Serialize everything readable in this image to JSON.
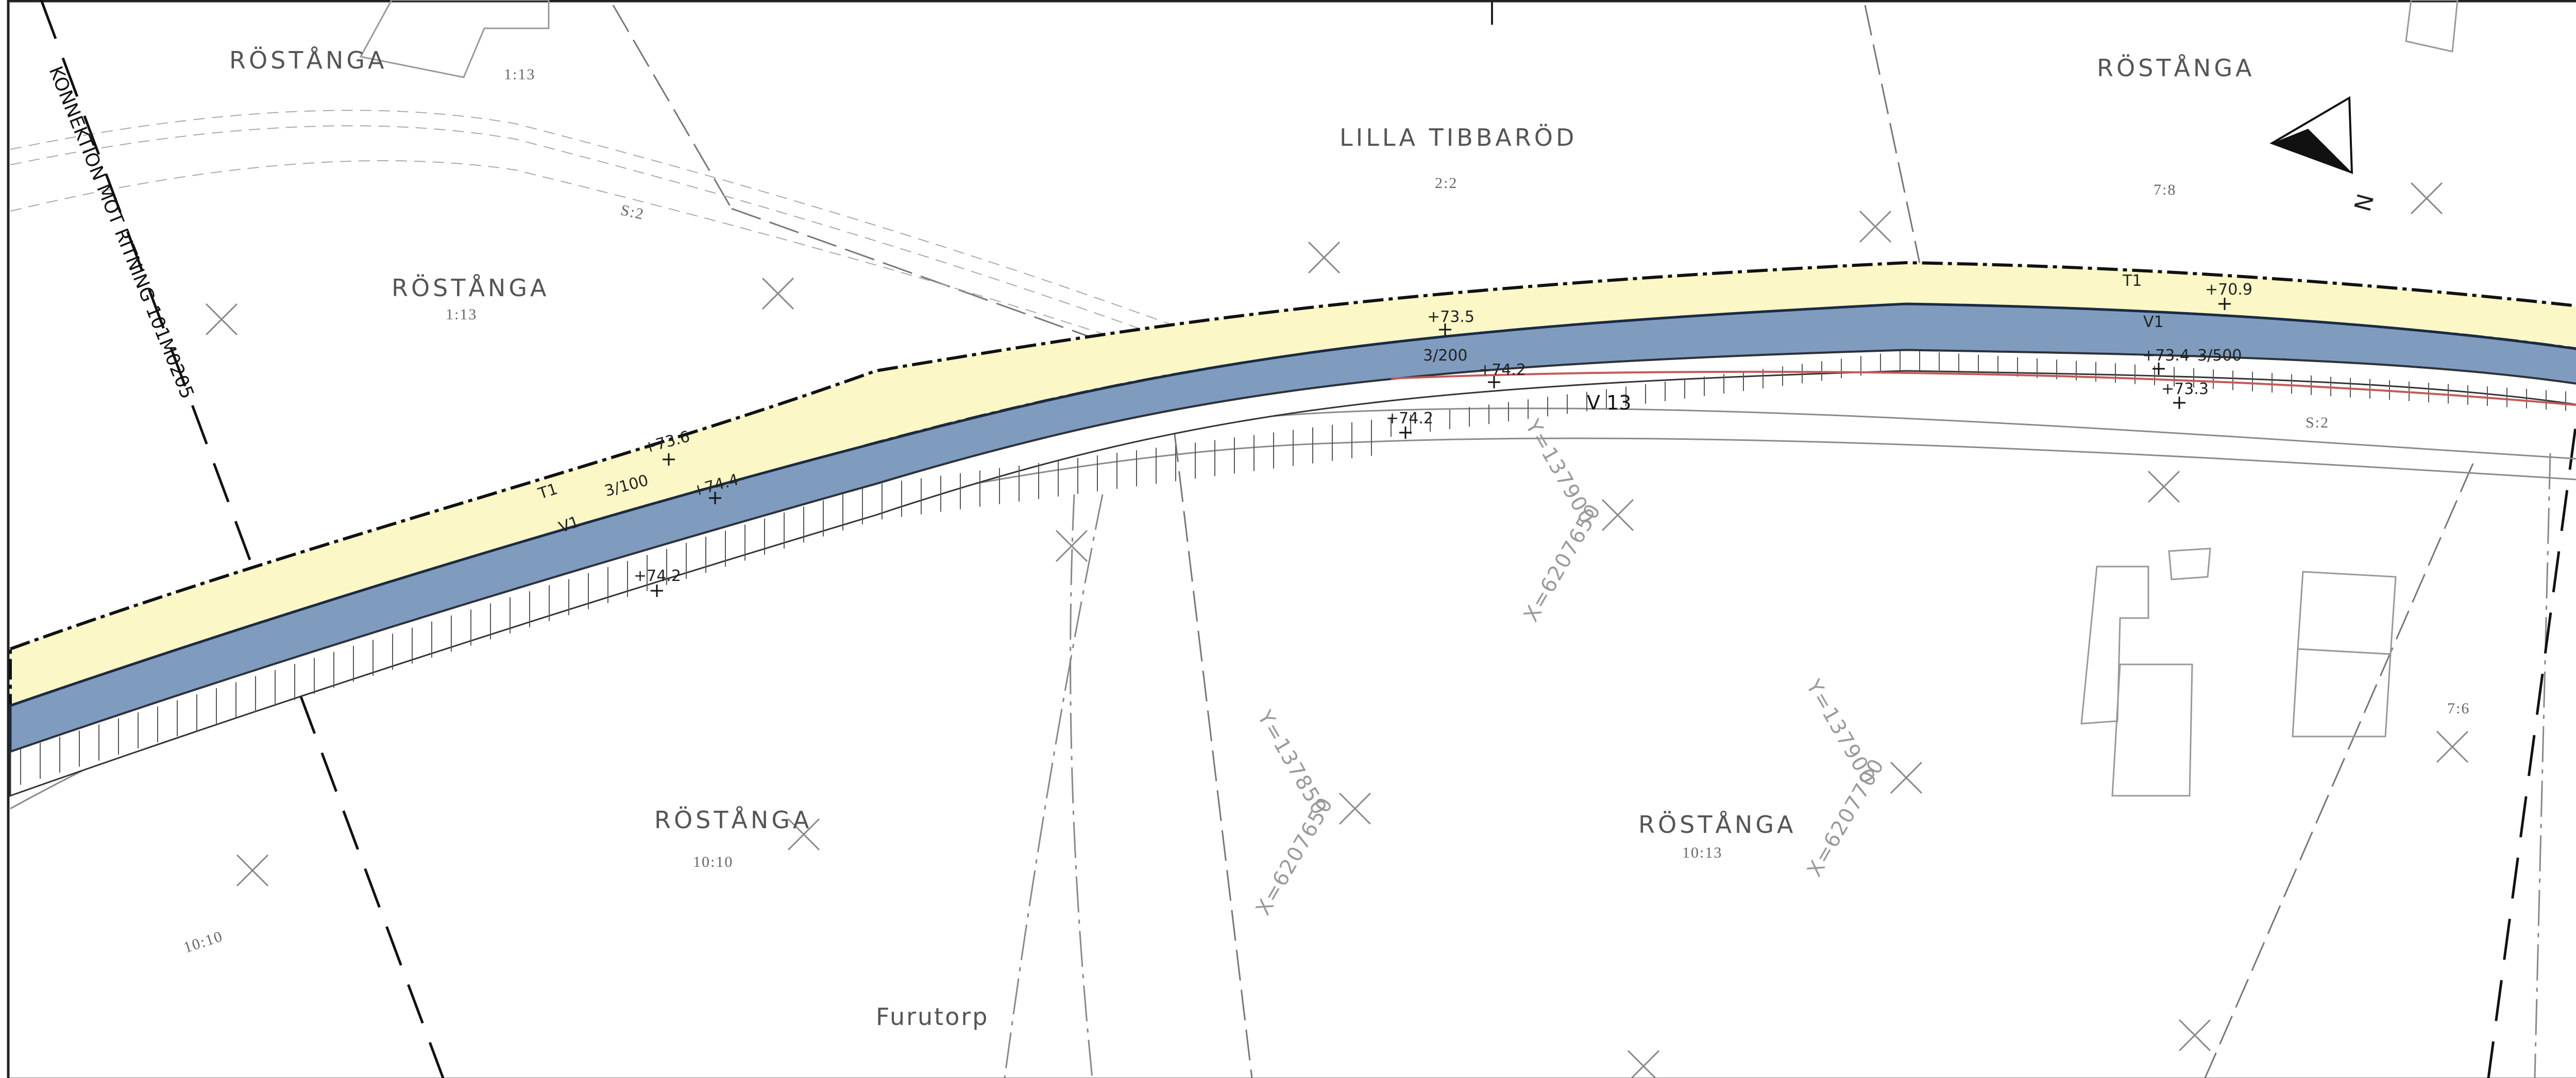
{
  "map": {
    "connection_note": "KONNEKTION MOT RITNING 101M0205",
    "road_name": "V 13",
    "north_symbol": "N",
    "property_labels": [
      {
        "name": "RÖSTÅNGA",
        "code": "1:13"
      },
      {
        "name": "RÖSTÅNGA",
        "code": "1:13"
      },
      {
        "name": "LILLA TIBBARÖD",
        "code": "2:2"
      },
      {
        "name": "RÖSTÅNGA",
        "code": "7:8"
      },
      {
        "name": "RÖSTÅNGA",
        "code": "10:10"
      },
      {
        "name": "RÖSTÅNGA",
        "code": "10:13"
      }
    ],
    "extra_codes": [
      "10:10",
      "7:6",
      "S:2",
      "S:2"
    ],
    "place_name": "Furutorp",
    "layer_codes": {
      "embankment": "T1",
      "road_surface": "V1"
    },
    "levels": [
      "+73.6",
      "+74.4",
      "+74.2",
      "+73.5",
      "+74.2",
      "+74.2",
      "+70.9",
      "+73.4",
      "+73.3"
    ],
    "slopes": [
      "3/100",
      "3/200",
      "3/500"
    ],
    "grid_coordinates": [
      "Y=137900",
      "X=6207650",
      "Y=137850",
      "X=6207650",
      "Y=137900",
      "X=6207700"
    ],
    "colors": {
      "embankment": "#fbf7c6",
      "road_surface": "#7f9bbd",
      "ditch_line": "#c45a5a",
      "line": "#222222"
    }
  }
}
